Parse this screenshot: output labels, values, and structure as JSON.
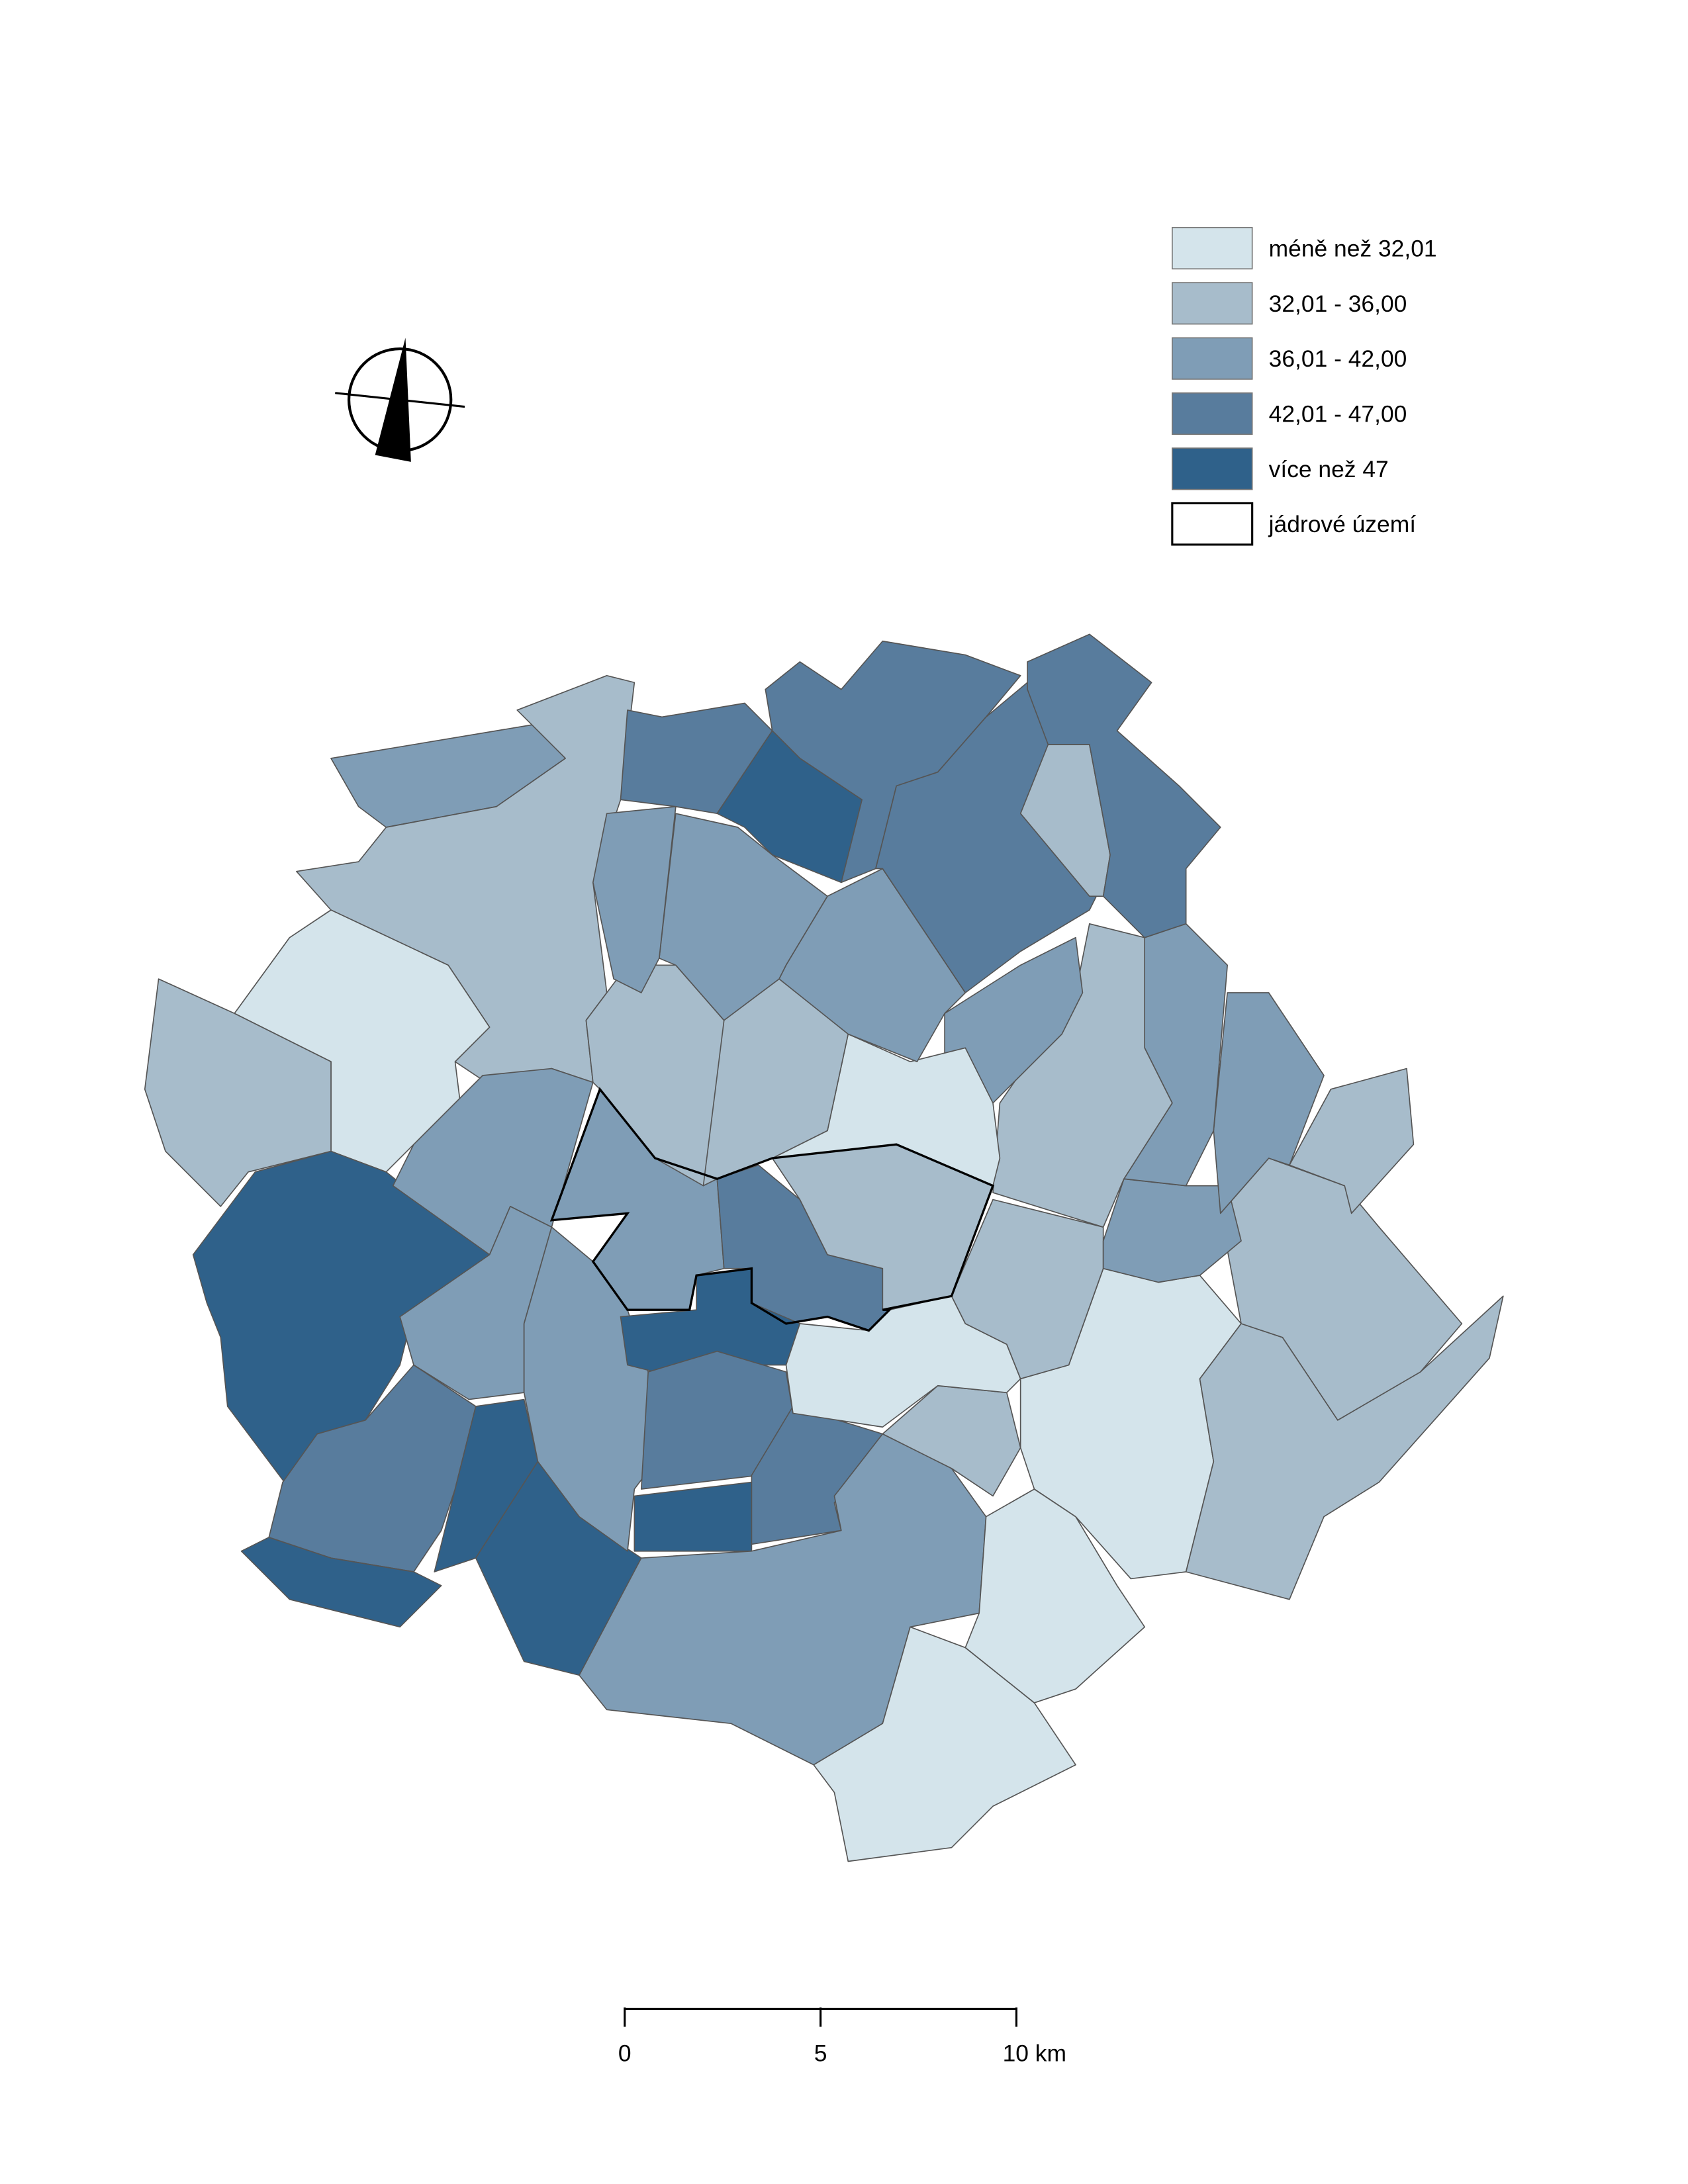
{
  "legend": {
    "items": [
      {
        "label": "méně než 32,01",
        "color": "#d4e4eb"
      },
      {
        "label": "32,01 - 36,00",
        "color": "#a7bccb"
      },
      {
        "label": "36,01 - 42,00",
        "color": "#7f9db6"
      },
      {
        "label": "42,01 - 47,00",
        "color": "#587c9d"
      },
      {
        "label": "více než 47",
        "color": "#2f618a"
      },
      {
        "label": "jádrové území",
        "color": "#ffffff"
      }
    ]
  },
  "scale_bar": {
    "xlim": [
      0,
      10
    ],
    "ticks": [
      0,
      5,
      {
        "value": 10,
        "label": "10 km"
      }
    ]
  }
}
